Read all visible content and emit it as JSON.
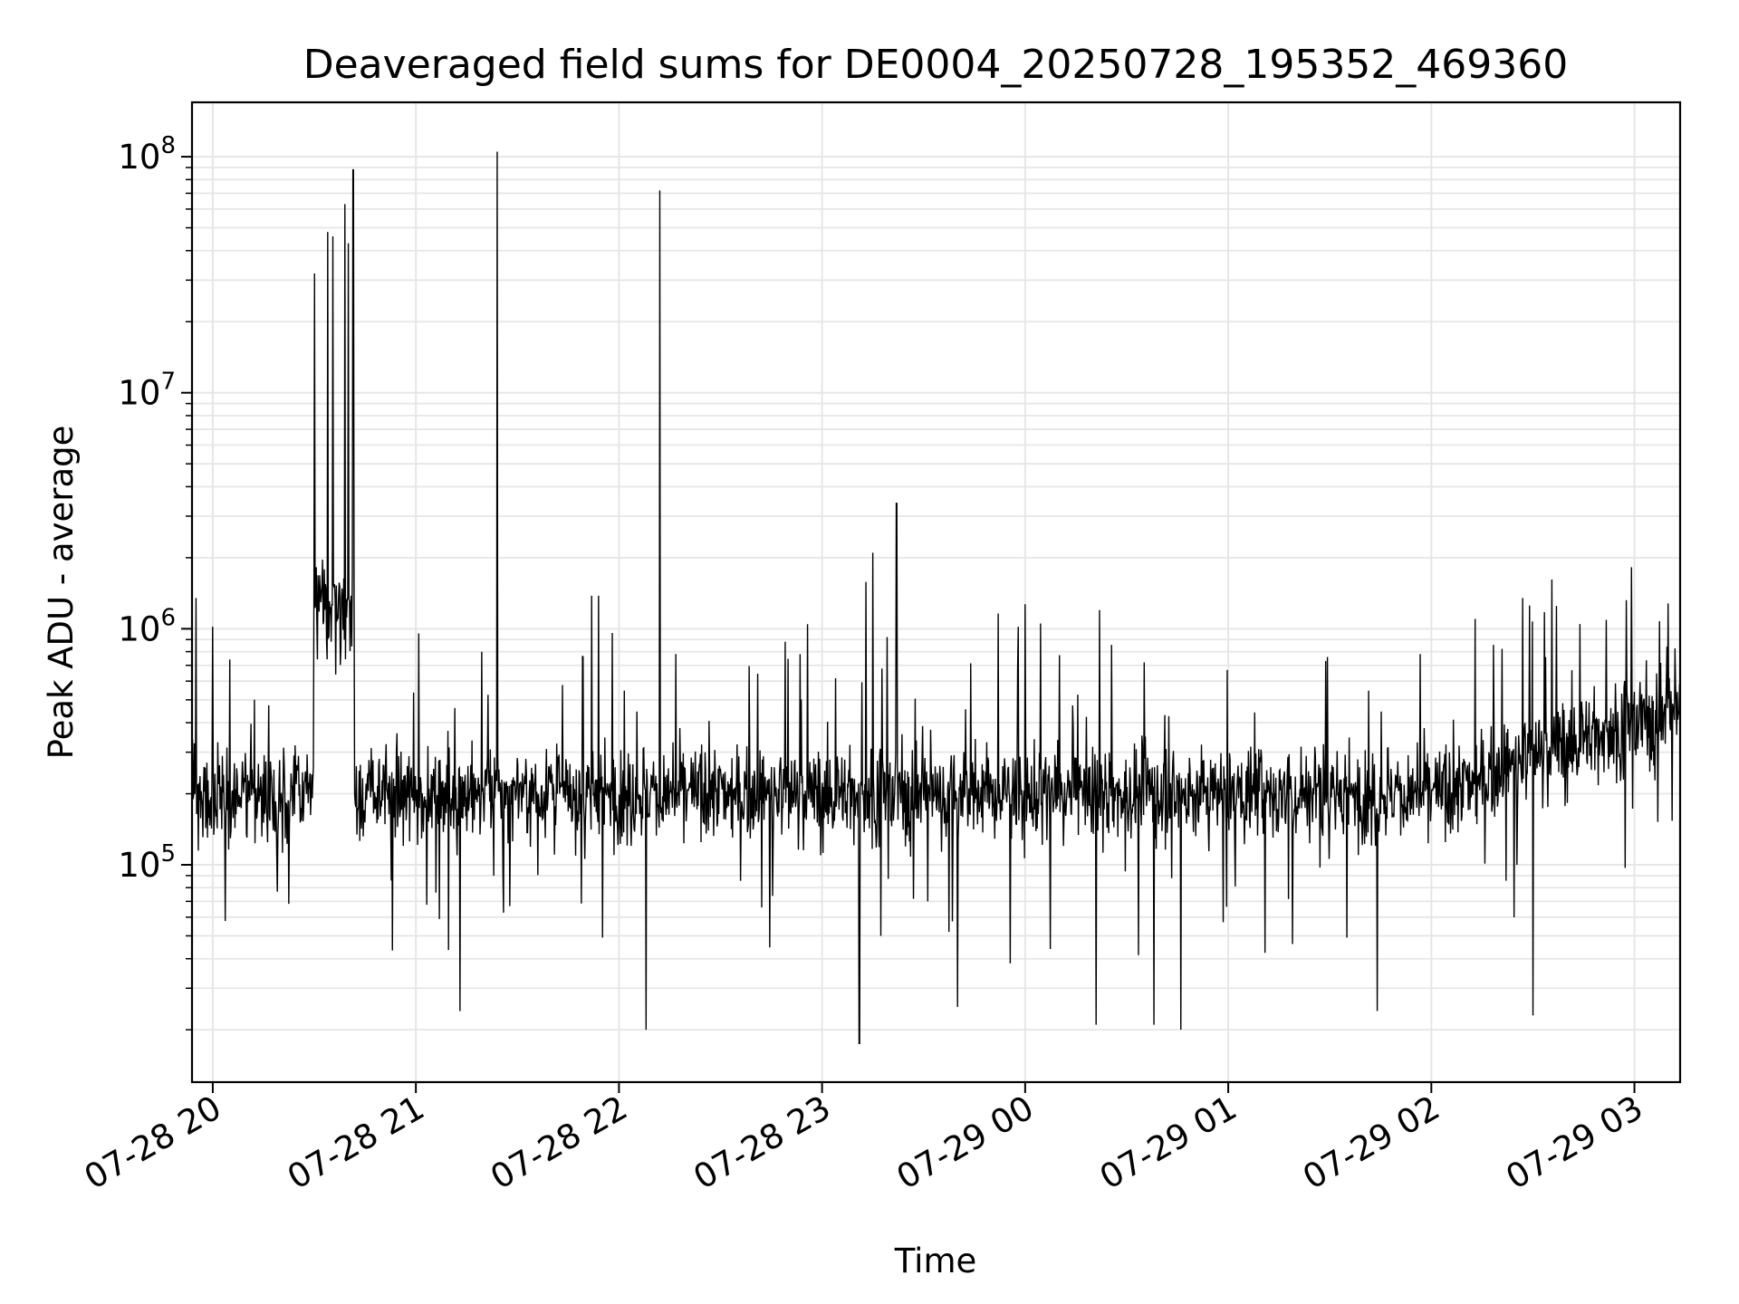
{
  "chart_data": {
    "type": "line",
    "title": "Deaveraged field sums for DE0004_20250728_195352_469360",
    "xlabel": "Time",
    "ylabel": "Peak ADU - average",
    "x_ticks": [
      "07-28 20",
      "07-28 21",
      "07-28 22",
      "07-28 23",
      "07-29 00",
      "07-29 01",
      "07-29 02",
      "07-29 03"
    ],
    "x_range": [
      "2025-07-28 19:53:52",
      "2025-07-29 03:13:30"
    ],
    "y_scale": "log",
    "y_ticks": [
      {
        "base": "10",
        "exp": "5"
      },
      {
        "base": "10",
        "exp": "6"
      },
      {
        "base": "10",
        "exp": "7"
      },
      {
        "base": "10",
        "exp": "8"
      }
    ],
    "ylim": [
      12000,
      170000000
    ],
    "grid": true,
    "line_color": "#000000",
    "series": [
      {
        "baseline": 200000,
        "spikes": [
          {
            "x": "2025-07-28 19:55:00",
            "y": 1350000
          },
          {
            "x": "2025-07-28 20:00:00",
            "y": 1020000
          },
          {
            "x": "2025-07-28 20:30:00",
            "y": 32000000
          },
          {
            "x": "2025-07-28 20:34:00",
            "y": 48000000
          },
          {
            "x": "2025-07-28 20:35:30",
            "y": 46000000
          },
          {
            "x": "2025-07-28 20:39:00",
            "y": 63000000
          },
          {
            "x": "2025-07-28 20:40:00",
            "y": 43000000
          },
          {
            "x": "2025-07-28 20:41:30",
            "y": 88000000
          },
          {
            "x": "2025-07-28 21:24:00",
            "y": 105000000
          },
          {
            "x": "2025-07-28 21:52:00",
            "y": 1380000
          },
          {
            "x": "2025-07-28 21:54:00",
            "y": 1380000
          },
          {
            "x": "2025-07-28 21:58:00",
            "y": 960000
          },
          {
            "x": "2025-07-28 22:12:00",
            "y": 72000000
          },
          {
            "x": "2025-07-28 23:13:00",
            "y": 1580000
          },
          {
            "x": "2025-07-28 23:15:00",
            "y": 2100000
          },
          {
            "x": "2025-07-28 23:22:00",
            "y": 3400000
          },
          {
            "x": "2025-07-28 23:52:00",
            "y": 1160000
          },
          {
            "x": "2025-07-28 23:58:00",
            "y": 1020000
          },
          {
            "x": "2025-07-29 00:00:00",
            "y": 1270000
          },
          {
            "x": "2025-07-29 00:22:00",
            "y": 1200000
          },
          {
            "x": "2025-07-29 02:13:00",
            "y": 1100000
          },
          {
            "x": "2025-07-29 02:27:00",
            "y": 1350000
          },
          {
            "x": "2025-07-29 02:37:00",
            "y": 1250000
          },
          {
            "x": "2025-07-29 03:10:00",
            "y": 1280000
          }
        ],
        "dips": [
          {
            "x": "2025-07-28 21:13:00",
            "y": 24000
          },
          {
            "x": "2025-07-28 22:08:00",
            "y": 20000
          },
          {
            "x": "2025-07-28 23:11:00",
            "y": 17500
          },
          {
            "x": "2025-07-28 23:40:00",
            "y": 25000
          },
          {
            "x": "2025-07-29 00:21:00",
            "y": 21000
          },
          {
            "x": "2025-07-29 00:38:00",
            "y": 21000
          },
          {
            "x": "2025-07-29 00:46:00",
            "y": 20000
          },
          {
            "x": "2025-07-29 01:44:00",
            "y": 24000
          },
          {
            "x": "2025-07-29 02:30:00",
            "y": 23000
          }
        ]
      }
    ]
  }
}
